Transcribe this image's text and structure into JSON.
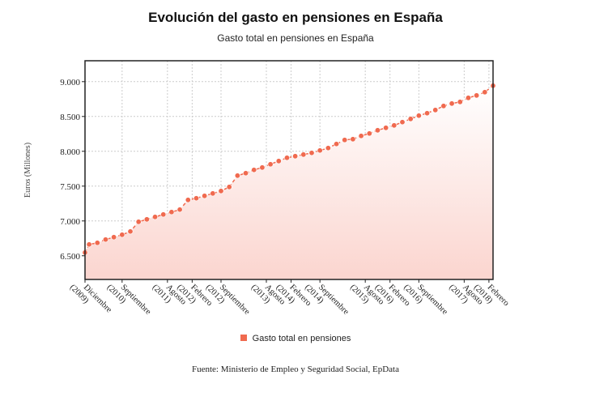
{
  "chart_data": {
    "type": "area",
    "title": "Evolución del gasto en pensiones en España",
    "subtitle": "Gasto total en pensiones en España",
    "xlabel": "",
    "ylabel": "Euros (Millones)",
    "ylim": [
      6160,
      9300
    ],
    "yticks": [
      {
        "value": 6500,
        "label": "6.500"
      },
      {
        "value": 7000,
        "label": "7.000"
      },
      {
        "value": 7500,
        "label": "7.500"
      },
      {
        "value": 8000,
        "label": "8.000"
      },
      {
        "value": 8500,
        "label": "8.500"
      },
      {
        "value": 9000,
        "label": "9.000"
      }
    ],
    "xlim_months": [
      0,
      99
    ],
    "xticks": [
      {
        "month": 0,
        "line1": "Diciembre",
        "line2": "(2009)"
      },
      {
        "month": 9,
        "line1": "Septiembre",
        "line2": "(2010)"
      },
      {
        "month": 20,
        "line1": "Agosto",
        "line2": "(2011)"
      },
      {
        "month": 26,
        "line1": "Febrero",
        "line2": "(2012)"
      },
      {
        "month": 33,
        "line1": "Septiembre",
        "line2": "(2012)"
      },
      {
        "month": 44,
        "line1": "Agosto",
        "line2": "(2013)"
      },
      {
        "month": 50,
        "line1": "Febrero",
        "line2": "(2014)"
      },
      {
        "month": 57,
        "line1": "Septiembre",
        "line2": "(2014)"
      },
      {
        "month": 68,
        "line1": "Agosto",
        "line2": "(2015)"
      },
      {
        "month": 74,
        "line1": "Febrero",
        "line2": "(2016)"
      },
      {
        "month": 81,
        "line1": "Septiembre",
        "line2": "(2016)"
      },
      {
        "month": 92,
        "line1": "Agosto",
        "line2": "(2017)"
      },
      {
        "month": 98,
        "line1": "Febrero",
        "line2": "(2018)"
      }
    ],
    "grid": true,
    "legend_position": "bottom-center",
    "series": [
      {
        "name": "Gasto total en pensiones",
        "color": "#f06a4f",
        "x_months": [
          0,
          1,
          3,
          5,
          7,
          9,
          11,
          13,
          15,
          17,
          19,
          21,
          23,
          25,
          27,
          29,
          31,
          33,
          35,
          37,
          39,
          41,
          43,
          45,
          47,
          49,
          51,
          53,
          55,
          57,
          59,
          61,
          63,
          65,
          67,
          69,
          71,
          73,
          75,
          77,
          79,
          81,
          83,
          85,
          87,
          89,
          91,
          93,
          95,
          97,
          99
        ],
        "values": [
          6546,
          6663,
          6686,
          6733,
          6767,
          6802,
          6849,
          6988,
          7023,
          7058,
          7093,
          7128,
          7163,
          7302,
          7326,
          7360,
          7395,
          7430,
          7488,
          7651,
          7686,
          7733,
          7767,
          7814,
          7860,
          7907,
          7930,
          7953,
          7977,
          8012,
          8047,
          8105,
          8163,
          8174,
          8221,
          8256,
          8302,
          8337,
          8372,
          8419,
          8465,
          8512,
          8547,
          8593,
          8651,
          8686,
          8709,
          8767,
          8802,
          8849,
          8942
        ]
      }
    ]
  },
  "source": "Fuente: Ministerio de Empleo y Seguridad Social, EpData",
  "colors": {
    "line": "#f06a4f",
    "fill_top": "#ffffff",
    "fill_bottom": "#fbd5cf",
    "grid": "#cccccc",
    "axis": "#222222"
  }
}
